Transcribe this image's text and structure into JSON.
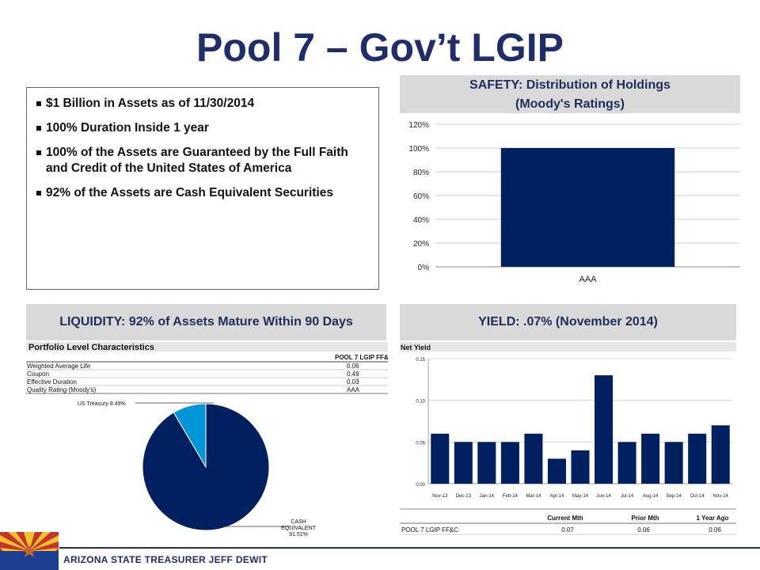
{
  "title": "Pool 7 – Gov’t LGIP",
  "bullets": [
    "$1 Billion in Assets as of 11/30/2014",
    "100% Duration Inside 1 year",
    "100% of the Assets are Guaranteed by the Full Faith and Credit of the United States of America",
    "92% of the Assets are Cash Equivalent Securities"
  ],
  "safety": {
    "header_line1": "SAFETY: Distribution of Holdings",
    "header_line2": "(Moody's Ratings)"
  },
  "liquidity": {
    "header": "LIQUIDITY: 92% of Assets Mature Within 90 Days",
    "table_title": "Portfolio Level Characteristics",
    "column_header": "POOL 7 LGIP FF&C",
    "rows": [
      {
        "label": "Weighted Average Life",
        "value": "0.06"
      },
      {
        "label": "Coupon",
        "value": "0.49"
      },
      {
        "label": "Effective Duration",
        "value": "0.03"
      },
      {
        "label": "Quality Rating (Moody's)",
        "value": "AAA"
      }
    ],
    "pie_label_treasury": "US Treasury 8.49%",
    "pie_label_cash": [
      "CASH",
      "EQUIVALENT",
      "91.51%"
    ]
  },
  "yield": {
    "header": "YIELD: .07% (November 2014)",
    "chart_title": "Net Yield",
    "table_headers": [
      "Current Mth",
      "Prior Mth",
      "1 Year Ago"
    ],
    "table_row_label": "POOL 7 LGIP FF&C",
    "table_values": [
      "0.07",
      "0.06",
      "0.06"
    ]
  },
  "footer": "ARIZONA STATE TREASURER JEFF DEWIT",
  "colors": {
    "navy": "#002060",
    "cyan": "#0094d8",
    "header_bg": "#d9d9d9"
  },
  "chart_data": [
    {
      "type": "bar",
      "categories": [
        "AAA"
      ],
      "values": [
        100
      ],
      "ylim": [
        0,
        120
      ],
      "yticks": [
        "0%",
        "20%",
        "40%",
        "60%",
        "80%",
        "100%",
        "120%"
      ],
      "grid": true
    },
    {
      "type": "pie",
      "labels": [
        "US Treasury",
        "CASH EQUIVALENT"
      ],
      "values": [
        8.49,
        91.51
      ],
      "colors": [
        "#0094d8",
        "#002060"
      ]
    },
    {
      "type": "bar",
      "title": "Net Yield",
      "categories": [
        "Nov-13",
        "Dec-13",
        "Jan-14",
        "Feb-14",
        "Mar-14",
        "Apr-14",
        "May-14",
        "Jun-14",
        "Jul-14",
        "Aug-14",
        "Sep-14",
        "Oct-14",
        "Nov-14"
      ],
      "values": [
        0.06,
        0.05,
        0.05,
        0.05,
        0.06,
        0.03,
        0.04,
        0.13,
        0.05,
        0.06,
        0.05,
        0.06,
        0.07
      ],
      "ylim": [
        0,
        0.15
      ],
      "yticks": [
        "0.00",
        "0.05",
        "0.10",
        "0.15"
      ],
      "grid": true
    }
  ]
}
